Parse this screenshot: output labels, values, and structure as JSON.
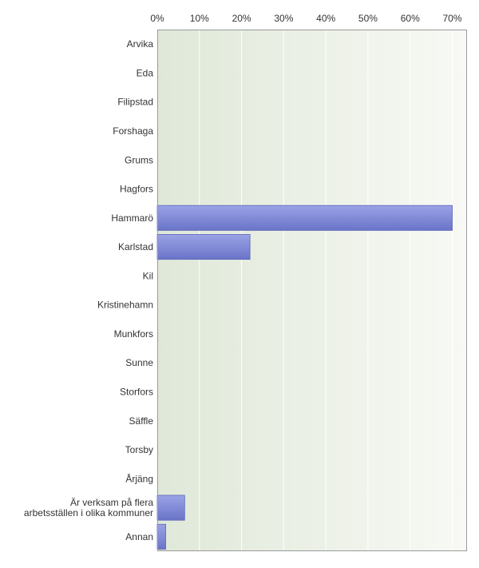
{
  "chart_data": {
    "type": "bar",
    "orientation": "horizontal",
    "categories": [
      "Arvika",
      "Eda",
      "Filipstad",
      "Forshaga",
      "Grums",
      "Hagfors",
      "Hammarö",
      "Karlstad",
      "Kil",
      "Kristinehamn",
      "Munkfors",
      "Sunne",
      "Storfors",
      "Säffle",
      "Torsby",
      "Årjäng",
      "Är verksam på flera arbetsställen i olika kommuner",
      "Annan"
    ],
    "category_lines": [
      [
        "Arvika"
      ],
      [
        "Eda"
      ],
      [
        "Filipstad"
      ],
      [
        "Forshaga"
      ],
      [
        "Grums"
      ],
      [
        "Hagfors"
      ],
      [
        "Hammarö"
      ],
      [
        "Karlstad"
      ],
      [
        "Kil"
      ],
      [
        "Kristinehamn"
      ],
      [
        "Munkfors"
      ],
      [
        "Sunne"
      ],
      [
        "Storfors"
      ],
      [
        "Säffle"
      ],
      [
        "Torsby"
      ],
      [
        "Årjäng"
      ],
      [
        "Är verksam på flera",
        "arbetsställen i olika kommuner"
      ],
      [
        "Annan"
      ]
    ],
    "values": [
      0,
      0,
      0,
      0,
      0,
      0,
      70,
      22,
      0,
      0,
      0,
      0,
      0,
      0,
      0,
      0,
      6.5,
      2
    ],
    "x_ticks": [
      0,
      10,
      20,
      30,
      40,
      50,
      60,
      70
    ],
    "x_tick_labels": [
      "0%",
      "10%",
      "20%",
      "30%",
      "40%",
      "50%",
      "60%",
      "70%"
    ],
    "xlim": [
      0,
      73.5
    ],
    "title": "",
    "xlabel": "",
    "ylabel": "",
    "grid": true,
    "legend": "none",
    "colors": {
      "bar_top": "#9aa3e6",
      "bar_bottom": "#6a74c8",
      "bar_stroke": "#5b65b8",
      "plot_bg_left": "#dfe8d8",
      "plot_bg_right": "#f8f9f5",
      "grid": "#ffffff",
      "frame": "#9a9a9a",
      "text": "#333333"
    }
  }
}
